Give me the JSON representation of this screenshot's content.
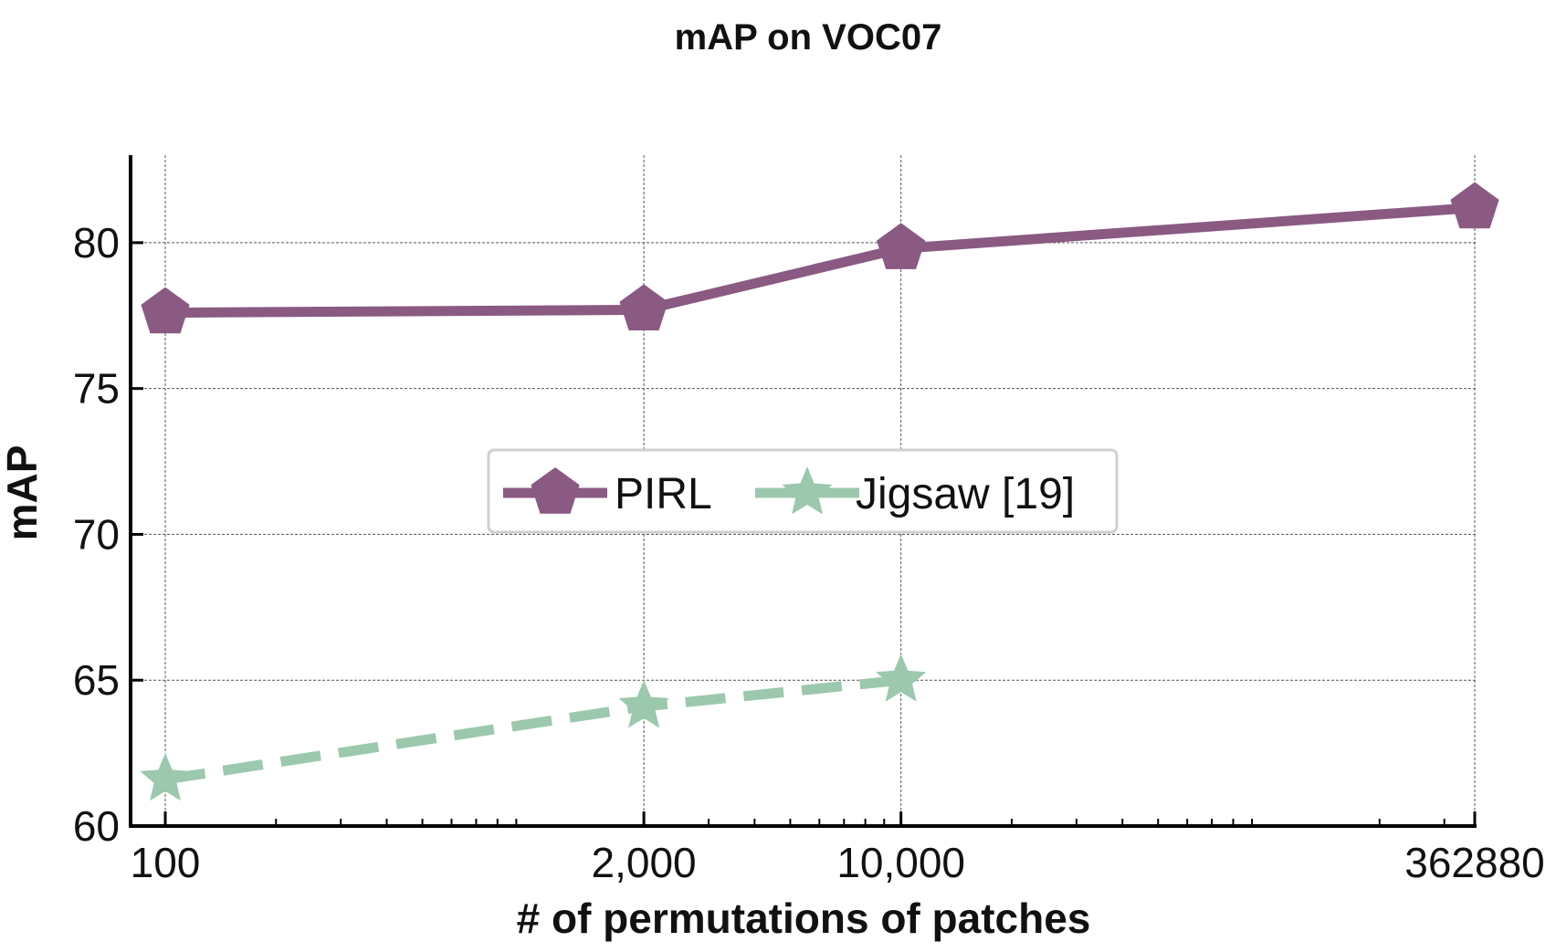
{
  "chart_data": {
    "type": "line",
    "title": "mAP on VOC07",
    "xlabel": "# of permutations of patches",
    "ylabel": "mAP",
    "x_scale": "log",
    "x": [
      100,
      2000,
      10000,
      362880
    ],
    "x_tick_labels": [
      "100",
      "2,000",
      "10,000",
      "362880"
    ],
    "xlim": [
      100,
      362880
    ],
    "ylim": [
      60,
      83
    ],
    "y_ticks": [
      60,
      65,
      70,
      75,
      80
    ],
    "grid": true,
    "legend_position": "center",
    "series": [
      {
        "name": "PIRL",
        "color": "#8a5a82",
        "marker": "pentagon",
        "line_style": "solid",
        "x": [
          100,
          2000,
          10000,
          362880
        ],
        "values": [
          77.6,
          77.7,
          79.8,
          81.2
        ]
      },
      {
        "name": "Jigsaw [19]",
        "color": "#9cc8ad",
        "marker": "star",
        "line_style": "dashed",
        "x": [
          100,
          2000,
          10000
        ],
        "values": [
          61.6,
          64.1,
          65.0
        ]
      }
    ]
  }
}
